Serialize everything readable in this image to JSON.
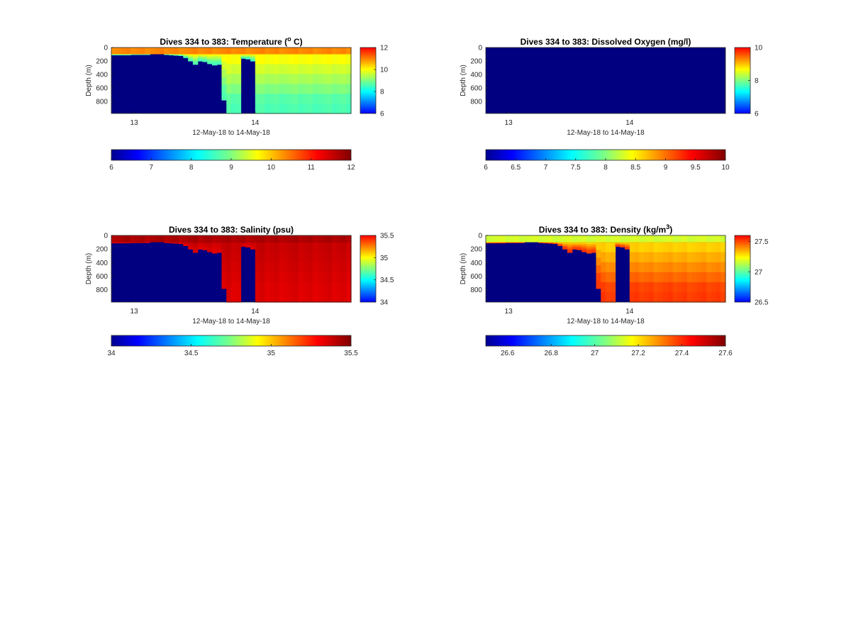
{
  "colors": {
    "jet": [
      "#00008f",
      "#0000ff",
      "#0080ff",
      "#00ffff",
      "#80ff80",
      "#ffff00",
      "#ff8000",
      "#ff0000",
      "#800000"
    ]
  },
  "chart_data": [
    {
      "type": "heatmap",
      "title": "Dives 334 to 383: Temperature (",
      "title_sup": "o",
      "title_after": " C)",
      "ylabel": "Depth (m)",
      "xlabel": "12-May-18 to 14-May-18",
      "x_ticks": [
        "13",
        "14"
      ],
      "y_ticks": [
        "0",
        "200",
        "400",
        "600",
        "800"
      ],
      "ylim": [
        0,
        980
      ],
      "clim": [
        6,
        12
      ],
      "side_colorbar_ticks": [
        "6",
        "8",
        "10",
        "12"
      ],
      "bottom_colorbar_ticks": [
        "6",
        "7",
        "8",
        "9",
        "10",
        "11",
        "12"
      ],
      "surface_value": 10.4,
      "deep_value": 8.7,
      "no_data_value": 6,
      "max_depth_per_profile": [
        110,
        110,
        110,
        110,
        105,
        105,
        105,
        105,
        100,
        100,
        100,
        105,
        110,
        115,
        120,
        150,
        200,
        250,
        200,
        210,
        240,
        260,
        250,
        780,
        980,
        980,
        980,
        160,
        170,
        200,
        980,
        980,
        980,
        980,
        980,
        980,
        980,
        980,
        980,
        980,
        980,
        980,
        980,
        980,
        980,
        980,
        980,
        980,
        980,
        980
      ]
    },
    {
      "type": "heatmap",
      "title": "Dives 334 to 383: Dissolved Oxygen (mg/l)",
      "title_sup": "",
      "title_after": "",
      "ylabel": "Depth (m)",
      "xlabel": "12-May-18 to 14-May-18",
      "x_ticks": [
        "13",
        "14"
      ],
      "y_ticks": [
        "0",
        "200",
        "400",
        "600",
        "800"
      ],
      "ylim": [
        0,
        980
      ],
      "clim": [
        6,
        10
      ],
      "side_colorbar_ticks": [
        "6",
        "8",
        "10"
      ],
      "bottom_colorbar_ticks": [
        "6",
        "6.5",
        "7",
        "7.5",
        "8",
        "8.5",
        "9",
        "9.5",
        "10"
      ],
      "surface_value": 6,
      "deep_value": 6,
      "no_data_value": 6,
      "max_depth_per_profile": []
    },
    {
      "type": "heatmap",
      "title": "Dives 334 to 383: Salinity (psu)",
      "title_sup": "",
      "title_after": "",
      "ylabel": "Depth (m)",
      "xlabel": "12-May-18 to 14-May-18",
      "x_ticks": [
        "13",
        "14"
      ],
      "y_ticks": [
        "0",
        "200",
        "400",
        "600",
        "800"
      ],
      "ylim": [
        0,
        980
      ],
      "clim": [
        34,
        35.5
      ],
      "side_colorbar_ticks": [
        "34",
        "34.5",
        "35",
        "35.5"
      ],
      "bottom_colorbar_ticks": [
        "34",
        "34.5",
        "35",
        "35.5"
      ],
      "surface_value": 35.42,
      "deep_value": 35.36,
      "no_data_value": 34,
      "max_depth_per_profile": [
        110,
        110,
        110,
        110,
        105,
        105,
        105,
        105,
        100,
        100,
        100,
        105,
        110,
        115,
        120,
        150,
        200,
        250,
        200,
        210,
        240,
        260,
        250,
        780,
        980,
        980,
        980,
        160,
        170,
        200,
        980,
        980,
        980,
        980,
        980,
        980,
        980,
        980,
        980,
        980,
        980,
        980,
        980,
        980,
        980,
        980,
        980,
        980,
        980,
        980
      ]
    },
    {
      "type": "heatmap",
      "title": "Dives 334 to 383: Density (kg/m",
      "title_sup": "3",
      "title_after": ")",
      "ylabel": "Depth (m)",
      "xlabel": "12-May-18 to 14-May-18",
      "x_ticks": [
        "13",
        "14"
      ],
      "y_ticks": [
        "0",
        "200",
        "400",
        "600",
        "800"
      ],
      "ylim": [
        0,
        980
      ],
      "clim": [
        26.5,
        27.6
      ],
      "side_colorbar_ticks": [
        "26.5",
        "27",
        "27.5"
      ],
      "bottom_colorbar_ticks": [
        "26.6",
        "26.8",
        "27",
        "27.2",
        "27.4",
        "27.6"
      ],
      "surface_value": 27.13,
      "deep_value": 27.4,
      "no_data_value": 26.5,
      "max_depth_per_profile": [
        110,
        110,
        110,
        110,
        105,
        105,
        105,
        105,
        100,
        100,
        100,
        105,
        110,
        115,
        120,
        150,
        200,
        250,
        200,
        210,
        240,
        260,
        250,
        780,
        980,
        980,
        980,
        160,
        170,
        200,
        980,
        980,
        980,
        980,
        980,
        980,
        980,
        980,
        980,
        980,
        980,
        980,
        980,
        980,
        980,
        980,
        980,
        980,
        980,
        980
      ]
    }
  ]
}
